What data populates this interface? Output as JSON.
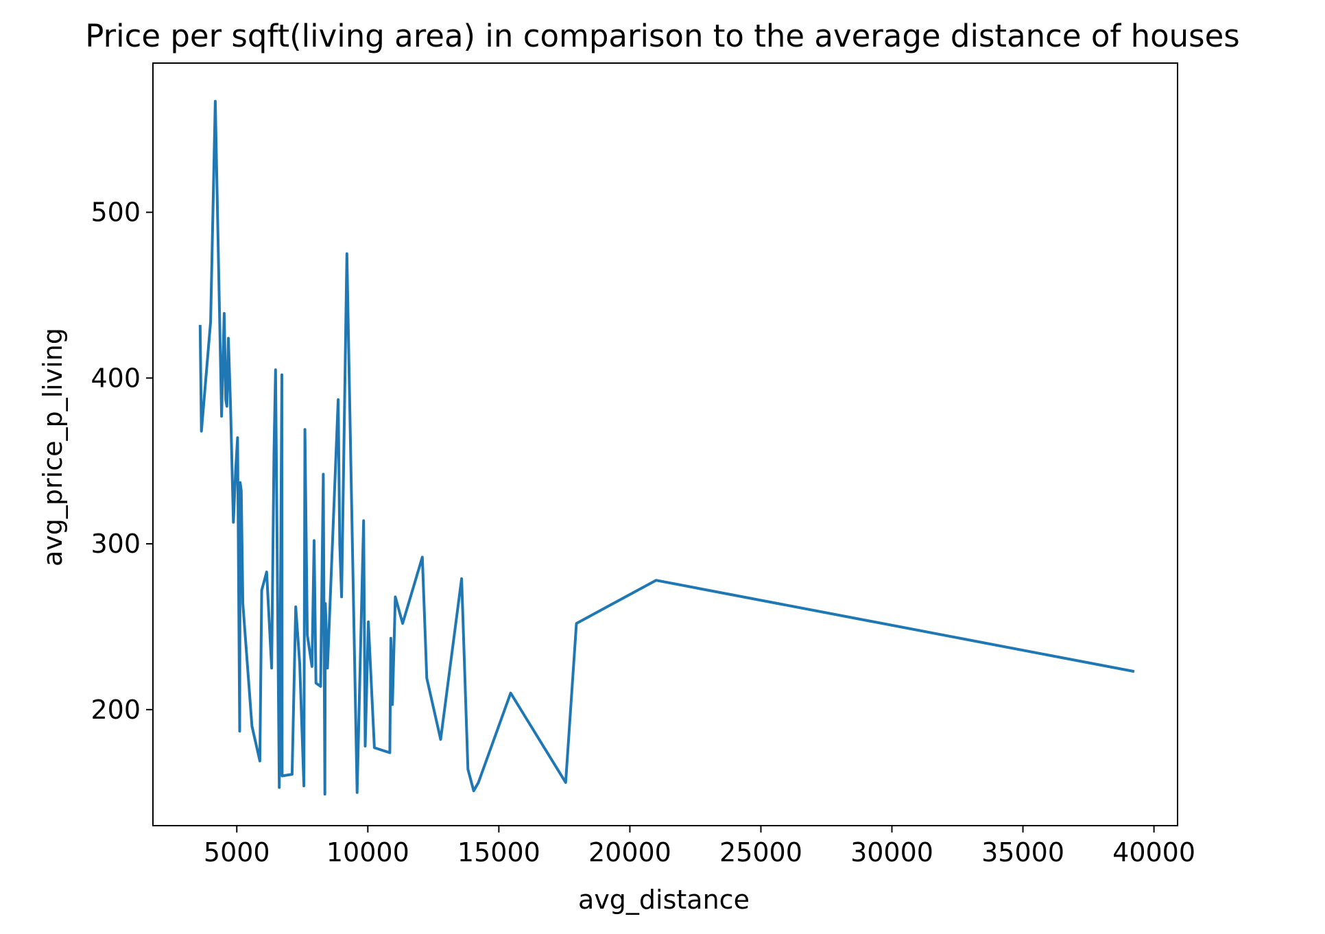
{
  "chart_data": {
    "type": "line",
    "title": "Price per sqft(living area) in comparison to the average distance of houses",
    "xlabel": "avg_distance",
    "ylabel": "avg_price_p_living",
    "xlim": [
      1800,
      40900
    ],
    "ylim": [
      130,
      590
    ],
    "x_ticks": [
      5000,
      10000,
      15000,
      20000,
      25000,
      30000,
      35000,
      40000
    ],
    "y_ticks": [
      200,
      300,
      400,
      500
    ],
    "grid": false,
    "legend": "none",
    "series": [
      {
        "color": "#1f77b4",
        "x": [
          3600,
          3650,
          4000,
          4180,
          4420,
          4520,
          4580,
          4620,
          4680,
          4760,
          4870,
          4960,
          5030,
          5110,
          5130,
          5170,
          5230,
          5580,
          5880,
          5950,
          6140,
          6330,
          6420,
          6480,
          6620,
          6720,
          6730,
          7110,
          7250,
          7400,
          7560,
          7600,
          7690,
          7870,
          7950,
          8020,
          8200,
          8300,
          8360,
          8380,
          8460,
          8870,
          8930,
          9000,
          9200,
          9590,
          9840,
          9900,
          10020,
          10250,
          10840,
          10880,
          10940,
          11050,
          11330,
          12080,
          12250,
          12780,
          13580,
          13820,
          14040,
          14220,
          15450,
          17550,
          17960,
          21000,
          39250
        ],
        "y": [
          432,
          368,
          434,
          567,
          377,
          439,
          387,
          383,
          424,
          384,
          313,
          345,
          364,
          187,
          337,
          332,
          264,
          190,
          169,
          272,
          283,
          225,
          355,
          405,
          153,
          402,
          160,
          161,
          262,
          228,
          154,
          369,
          245,
          226,
          302,
          216,
          214,
          342,
          149,
          264,
          225,
          387,
          300,
          268,
          475,
          150,
          314,
          178,
          253,
          177,
          174,
          243,
          203,
          268,
          252,
          292,
          219,
          182,
          279,
          164,
          151,
          156,
          210,
          156,
          252,
          278,
          223
        ]
      }
    ]
  }
}
